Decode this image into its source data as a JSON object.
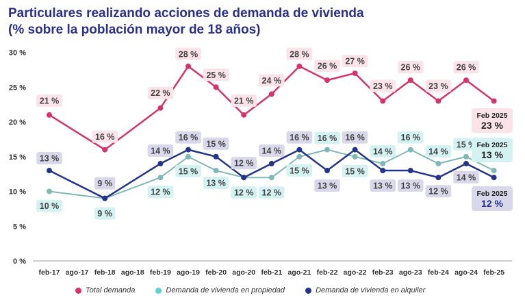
{
  "chart_data": {
    "type": "line",
    "title": "Particulares realizando acciones de demanda de vivienda",
    "subtitle": "(% sobre la población mayor de 18 años)",
    "categories": [
      "feb-17",
      "ago-17",
      "feb-18",
      "ago-18",
      "feb-19",
      "ago-19",
      "feb-20",
      "ago-20",
      "feb-21",
      "ago-21",
      "feb-22",
      "ago-22",
      "feb-23",
      "ago-23",
      "feb-24",
      "ago-24",
      "feb-25"
    ],
    "y_ticks": [
      "0 %",
      "5 %",
      "10 %",
      "15 %",
      "20 %",
      "25 %",
      "30 %"
    ],
    "ylim": [
      0,
      30
    ],
    "series": [
      {
        "name": "Total demanda",
        "color": "#d6336c",
        "label_bg": "#fbe3ea",
        "line_width": 2.5,
        "values": [
          21,
          null,
          16,
          null,
          22,
          28,
          25,
          21,
          24,
          28,
          26,
          27,
          23,
          26,
          23,
          26,
          23
        ],
        "labels": [
          "21 %",
          null,
          "16 %",
          null,
          "22 %",
          "28 %",
          "25 %",
          "21 %",
          "24 %",
          "28 %",
          "26 %",
          "27 %",
          "23 %",
          "26 %",
          "23 %",
          "26 %",
          null
        ]
      },
      {
        "name": "Demanda de vivienda en propiedad",
        "color": "#7fb8b7",
        "label_bg": "#d4f2f1",
        "line_width": 2,
        "values": [
          10,
          null,
          9,
          null,
          12,
          15,
          13,
          12,
          12,
          15,
          16,
          15,
          14,
          16,
          14,
          15,
          13
        ],
        "labels": [
          "10 %",
          null,
          "9 %",
          null,
          "12 %",
          "15 %",
          "13 %",
          "12 %",
          "12 %",
          "15 %",
          "16 %",
          "15 %",
          "14 %",
          "16 %",
          "14 %",
          "15 %",
          null
        ]
      },
      {
        "name": "Demanda de vivienda en alquiler",
        "color": "#23348a",
        "label_bg": "#d8d8ea",
        "line_width": 2.5,
        "values": [
          13,
          null,
          9,
          null,
          14,
          16,
          15,
          12,
          14,
          16,
          13,
          16,
          13,
          13,
          12,
          14,
          12
        ],
        "labels": [
          "13 %",
          null,
          "9 %",
          null,
          "14 %",
          "16 %",
          "15 %",
          "12 %",
          "14 %",
          "16 %",
          "13 %",
          "16 %",
          "13 %",
          "13 %",
          "12 %",
          "14 %",
          null
        ]
      }
    ],
    "end_labels": [
      {
        "date": "Feb 2025",
        "value": "23 %",
        "bg": "#fbe3ea"
      },
      {
        "date": "Feb 2025",
        "value": "13 %",
        "bg": "#d4f2f1"
      },
      {
        "date": "Feb 2025",
        "value": "12 %",
        "bg": "#d8d8ea"
      }
    ],
    "legend": [
      {
        "name": "Total demanda",
        "color": "#d6336c"
      },
      {
        "name": "Demanda de vivienda en propiedad",
        "color": "#5fd3cf"
      },
      {
        "name": "Demanda de vivienda en alquiler",
        "color": "#23348a"
      }
    ],
    "grid": false
  }
}
